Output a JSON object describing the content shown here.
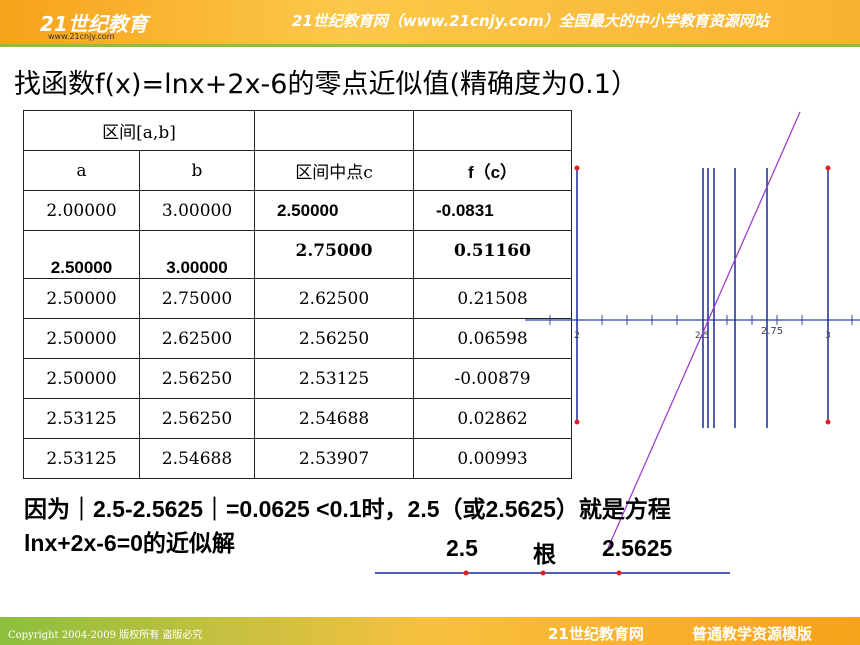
{
  "header": {
    "logo": "21世纪教育",
    "logo_url": "www.21cnjy.com",
    "site": "21世纪教育网（www.21cnjy.com）全国最大的中小学教育资源网站"
  },
  "title": "找函数f(x)=lnx+2x-6的零点近似值(精确度为0.1）",
  "table": {
    "rows": [
      [
        "区间[a,b]"
      ],
      [
        "a",
        "b",
        "区间中点c",
        "f（c）"
      ],
      [
        "2.00000",
        "3.00000",
        "2.50000",
        "-0.0831"
      ],
      [
        "2.50000",
        "3.00000",
        "2.75000",
        "0.51160"
      ],
      [
        "2.50000",
        "2.75000",
        "2.62500",
        "0.21508"
      ],
      [
        "2.50000",
        "2.62500",
        "2.56250",
        "0.06598"
      ],
      [
        "2.50000",
        "2.56250",
        "2.53125",
        "-0.00879"
      ],
      [
        "2.53125",
        "2.56250",
        "2.54688",
        "0.02862"
      ],
      [
        "2.53125",
        "2.54688",
        "2.53907",
        "0.00993"
      ]
    ]
  },
  "graph": {
    "labels": [
      "2",
      "2.5",
      "2.75",
      "3"
    ]
  },
  "conclusion": [
    "因为｜2.5-2.5625｜=0.0625 <0.1时，2.5（或2.5625）就是方程",
    "lnx+2x-6=0的近似解"
  ],
  "number_line": [
    "2.5",
    "根",
    "2.5625"
  ],
  "footer": {
    "copyright": "Copyright 2004-2009 版权所有 盗版必究",
    "site": "21世纪教育网",
    "template": "普通教学资源模版"
  }
}
